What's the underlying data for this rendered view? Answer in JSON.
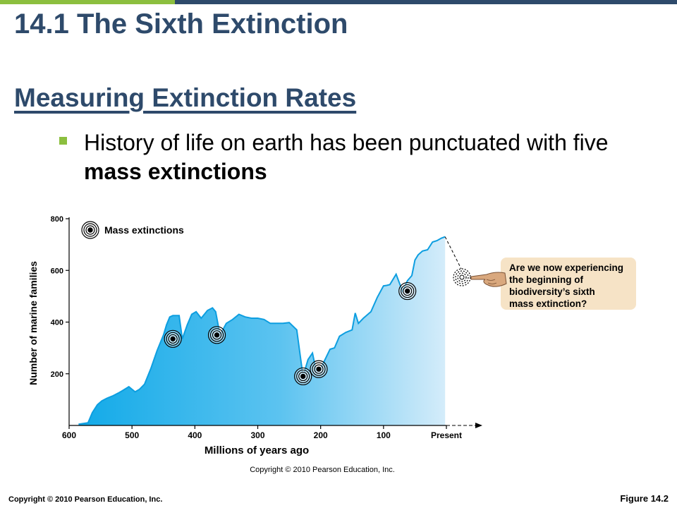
{
  "slide": {
    "title": "14.1 The Sixth Extinction",
    "subtitle": "Measuring Extinction Rates",
    "bullet_text": "History of life on earth has been punctuated with five ",
    "bullet_bold": "mass extinctions",
    "footer_copyright": "Copyright © 2010 Pearson Education, Inc.",
    "figure_label": "Figure 14.2"
  },
  "colors": {
    "accent_green": "#8cbf3f",
    "title_blue": "#2e4a6b",
    "area_dark": "#12aae8",
    "area_light": "#d4ecfa",
    "line": "#0d9ee0",
    "callout_bg": "#f6e3c6"
  },
  "chart_data": {
    "type": "area",
    "xlabel": "Millions of years ago",
    "ylabel": "Number of marine families",
    "xlim": [
      600,
      0
    ],
    "ylim": [
      0,
      800
    ],
    "xticks": [
      600,
      500,
      400,
      300,
      200,
      100,
      0
    ],
    "xtick_labels": [
      "600",
      "500",
      "400",
      "300",
      "200",
      "100",
      "Present"
    ],
    "yticks": [
      200,
      400,
      600,
      800
    ],
    "ytick_labels": [
      "200",
      "400",
      "600",
      "800"
    ],
    "grid": false,
    "legend": "top-left",
    "legend_label": "Mass extinctions",
    "x": [
      585,
      570,
      563,
      555,
      548,
      540,
      535,
      530,
      522,
      515,
      505,
      495,
      488,
      480,
      470,
      460,
      450,
      445,
      440,
      435,
      425,
      420,
      412,
      405,
      398,
      390,
      380,
      372,
      367,
      360,
      350,
      340,
      330,
      320,
      310,
      300,
      290,
      280,
      270,
      260,
      250,
      238,
      228,
      220,
      213,
      207,
      200,
      193,
      185,
      178,
      170,
      160,
      150,
      145,
      140,
      132,
      120,
      110,
      100,
      95,
      90,
      80,
      70,
      62,
      55,
      50,
      45,
      38,
      30,
      22,
      15,
      8,
      2
    ],
    "y": [
      5,
      10,
      50,
      80,
      95,
      105,
      110,
      115,
      125,
      135,
      150,
      130,
      140,
      160,
      220,
      290,
      350,
      390,
      420,
      425,
      425,
      335,
      390,
      430,
      440,
      415,
      445,
      455,
      440,
      350,
      395,
      410,
      430,
      420,
      415,
      415,
      410,
      395,
      395,
      395,
      398,
      370,
      190,
      255,
      280,
      210,
      220,
      255,
      295,
      300,
      345,
      360,
      370,
      435,
      395,
      415,
      440,
      495,
      540,
      542,
      545,
      585,
      520,
      560,
      580,
      640,
      660,
      675,
      680,
      710,
      715,
      725,
      730
    ],
    "extinctions": [
      {
        "x": 435,
        "y": 335
      },
      {
        "x": 365,
        "y": 350
      },
      {
        "x": 228,
        "y": 190
      },
      {
        "x": 203,
        "y": 218
      },
      {
        "x": 62,
        "y": 520
      }
    ],
    "callout": {
      "lines": [
        "Are we now experiencing",
        "the beginning of",
        "biodiversity’s sixth",
        "mass extinction?"
      ]
    },
    "copyright": "Copyright © 2010 Pearson Education, Inc."
  }
}
